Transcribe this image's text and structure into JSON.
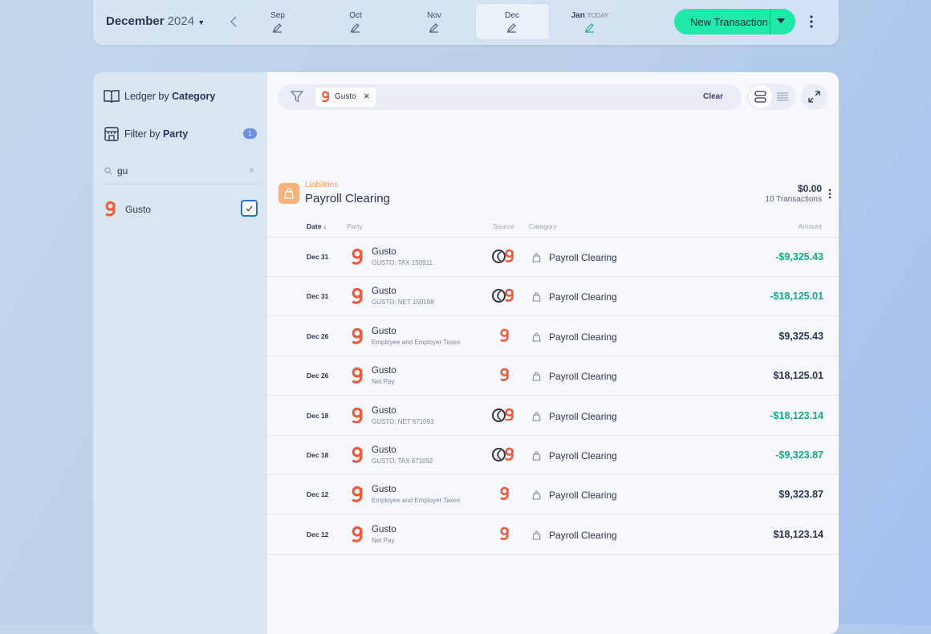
{
  "header": {
    "month": "December",
    "year": "2024",
    "months": [
      {
        "name": "Sep"
      },
      {
        "name": "Oct"
      },
      {
        "name": "Nov"
      },
      {
        "name": "Dec"
      },
      {
        "name": "Jan",
        "tag": "TODAY"
      }
    ],
    "new_transaction": "New Transaction"
  },
  "sidebar": {
    "ledger": {
      "prefix": "Ledger by",
      "strong": "Category"
    },
    "filter": {
      "prefix": "Filter by",
      "strong": "Party",
      "count": 1
    },
    "search": "gu",
    "results": [
      {
        "name": "Gusto"
      }
    ]
  },
  "filterbar": {
    "chips": [
      "Gusto"
    ],
    "clear": "Clear"
  },
  "group": {
    "kind": "Liabilities",
    "name": "Payroll Clearing",
    "total": "$0.00",
    "count": "10 Transactions"
  },
  "columns": [
    "Date",
    "Party",
    "Source",
    "Category",
    "Amount"
  ],
  "rows": [
    {
      "date": "Dec 31",
      "party": "Gusto",
      "memo": "GUSTO; TAX 150911",
      "category": "Payroll Clearing",
      "amount": "-$9,325.43"
    },
    {
      "date": "Dec 31",
      "party": "Gusto",
      "memo": "GUSTO; NET 150198",
      "category": "Payroll Clearing",
      "amount": "-$18,125.01"
    },
    {
      "date": "Dec 26",
      "party": "Gusto",
      "memo": "Employee and Employer Taxes",
      "category": "Payroll Clearing",
      "amount": "$9,325.43"
    },
    {
      "date": "Dec 26",
      "party": "Gusto",
      "memo": "Net Pay",
      "category": "Payroll Clearing",
      "amount": "$18,125.01"
    },
    {
      "date": "Dec 18",
      "party": "Gusto",
      "memo": "GUSTO; NET 671093",
      "category": "Payroll Clearing",
      "amount": "-$18,123.14"
    },
    {
      "date": "Dec 18",
      "party": "Gusto",
      "memo": "GUSTO; TAX 671092",
      "category": "Payroll Clearing",
      "amount": "-$9,323.87"
    },
    {
      "date": "Dec 12",
      "party": "Gusto",
      "memo": "Employee and Employer Taxes",
      "category": "Payroll Clearing",
      "amount": "$9,323.87"
    },
    {
      "date": "Dec 12",
      "party": "Gusto",
      "memo": "Net Pay",
      "category": "Payroll Clearing",
      "amount": "$18,123.14"
    }
  ]
}
